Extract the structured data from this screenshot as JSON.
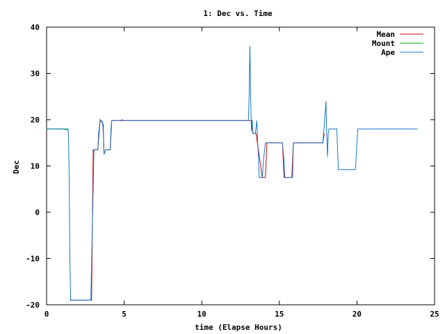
{
  "chart_data": {
    "type": "line",
    "title": "1: Dec vs. Time",
    "xlabel": "time (Elapse Hours)",
    "ylabel": "Dec",
    "xlim": [
      0,
      25
    ],
    "ylim": [
      -20,
      40
    ],
    "x_ticks": [
      0,
      5,
      10,
      15,
      20,
      25
    ],
    "y_ticks": [
      -20,
      -10,
      0,
      10,
      20,
      30,
      40
    ],
    "grid": false,
    "legend_position": "top-right",
    "series": [
      {
        "name": "Mean",
        "color": "#cc0000",
        "points": [
          [
            1.5,
            -19
          ],
          [
            2.9,
            -19
          ],
          [
            3.0,
            13.5
          ],
          [
            3.3,
            13.5
          ],
          [
            3.45,
            20
          ],
          [
            3.65,
            19
          ],
          [
            3.7,
            12.5
          ],
          [
            3.8,
            13.5
          ],
          [
            4.1,
            13.5
          ],
          [
            4.2,
            19.8
          ],
          [
            5.0,
            19.8
          ],
          [
            13.0,
            19.8
          ],
          [
            13.2,
            19.8
          ],
          [
            13.3,
            17.0
          ],
          [
            13.5,
            17.0
          ],
          [
            13.9,
            7.5
          ],
          [
            14.1,
            7.5
          ],
          [
            14.2,
            15.0
          ],
          [
            15.2,
            15.0
          ],
          [
            15.3,
            7.5
          ],
          [
            15.8,
            7.5
          ],
          [
            15.9,
            15.0
          ],
          [
            17.8,
            15.0
          ],
          [
            17.9,
            17.0
          ]
        ]
      },
      {
        "name": "Mount",
        "color": "#00aa00",
        "points": [
          [
            0,
            18
          ],
          [
            1.4,
            18
          ]
        ]
      },
      {
        "name": "Ape",
        "color": "#1177cc",
        "points": [
          [
            0,
            18
          ],
          [
            1.0,
            18
          ],
          [
            1.35,
            17.8
          ],
          [
            1.4,
            17.8
          ],
          [
            1.45,
            9
          ],
          [
            1.5,
            -10
          ],
          [
            1.55,
            -19
          ],
          [
            2.85,
            -19
          ],
          [
            2.9,
            -11
          ],
          [
            3.0,
            5
          ],
          [
            3.05,
            13.5
          ],
          [
            3.3,
            13.5
          ],
          [
            3.35,
            17
          ],
          [
            3.45,
            20
          ],
          [
            3.6,
            19.5
          ],
          [
            3.65,
            17.5
          ],
          [
            3.7,
            12.5
          ],
          [
            3.8,
            13.5
          ],
          [
            4.1,
            13.5
          ],
          [
            4.15,
            18
          ],
          [
            4.2,
            19.8
          ],
          [
            4.8,
            19.8
          ],
          [
            4.85,
            20
          ],
          [
            5.0,
            19.8
          ],
          [
            13.0,
            19.8
          ],
          [
            13.05,
            25
          ],
          [
            13.1,
            36
          ],
          [
            13.15,
            25
          ],
          [
            13.2,
            17.5
          ],
          [
            13.25,
            20
          ],
          [
            13.3,
            17.0
          ],
          [
            13.45,
            17.0
          ],
          [
            13.55,
            19.8
          ],
          [
            13.6,
            15
          ],
          [
            13.65,
            12
          ],
          [
            13.7,
            7.5
          ],
          [
            13.9,
            7.5
          ],
          [
            13.95,
            10
          ],
          [
            14.0,
            12
          ],
          [
            14.1,
            15.0
          ],
          [
            15.2,
            15.0
          ],
          [
            15.3,
            11
          ],
          [
            15.35,
            7.5
          ],
          [
            15.85,
            7.5
          ],
          [
            15.9,
            15.0
          ],
          [
            17.8,
            15.0
          ],
          [
            17.9,
            19
          ],
          [
            18.0,
            24
          ],
          [
            18.05,
            17
          ],
          [
            18.1,
            12
          ],
          [
            18.15,
            17
          ],
          [
            18.2,
            18
          ],
          [
            18.7,
            18
          ],
          [
            18.8,
            9.2
          ],
          [
            19.9,
            9.2
          ],
          [
            20.05,
            18
          ],
          [
            23.9,
            18
          ]
        ]
      }
    ]
  }
}
